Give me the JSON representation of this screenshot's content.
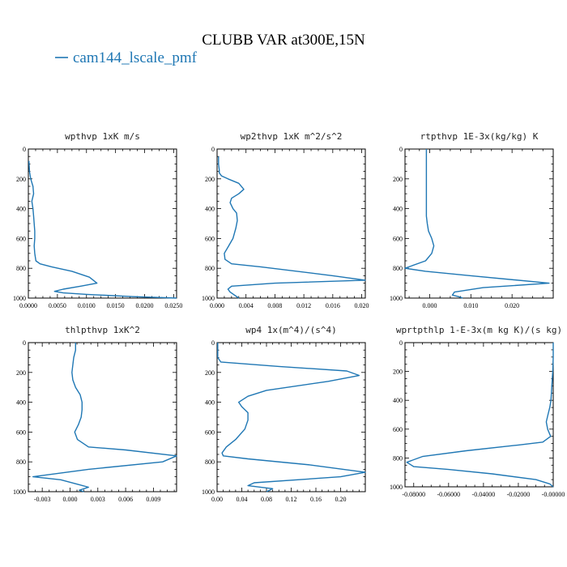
{
  "figure": {
    "title": "CLUBB VAR at300E,15N",
    "legend_label": "cam144_lscale_pmf",
    "series_color": "#1f77b4"
  },
  "chart_data": [
    {
      "type": "line",
      "title": "wpthvp  1xK m/s",
      "xlim": [
        0,
        0.0255
      ],
      "ylim": [
        1000,
        0
      ],
      "xticks": [
        0.0,
        0.005,
        0.01,
        0.015,
        0.02,
        0.025
      ],
      "xtick_labels": [
        "0.0000",
        "0.0050",
        "0.0100",
        "0.0150",
        "0.0200",
        "0.0250"
      ],
      "yticks": [
        0,
        200,
        400,
        600,
        800,
        1000
      ],
      "ytick_labels": [
        "0",
        "200",
        "400",
        "600",
        "800",
        "1000"
      ],
      "series": [
        {
          "x": [
            0.0001,
            0.0002,
            0.0004,
            0.0008,
            0.0009,
            0.0006,
            0.0008,
            0.0009,
            0.001,
            0.0011,
            0.0011,
            0.001,
            0.0011,
            0.0013,
            0.002,
            0.004,
            0.0075,
            0.0105,
            0.0118,
            0.009,
            0.006,
            0.0045,
            0.006,
            0.01,
            0.018,
            0.0255
          ],
          "y": [
            80,
            150,
            200,
            250,
            300,
            350,
            400,
            450,
            500,
            550,
            600,
            650,
            700,
            750,
            770,
            790,
            820,
            860,
            900,
            920,
            940,
            955,
            965,
            975,
            990,
            1000
          ]
        }
      ]
    },
    {
      "type": "line",
      "title": "wp2thvp  1xK m^2/s^2",
      "xlim": [
        0,
        0.0205
      ],
      "ylim": [
        1000,
        0
      ],
      "xticks": [
        0.0,
        0.004,
        0.008,
        0.012,
        0.016,
        0.02
      ],
      "xtick_labels": [
        "0.000",
        "0.004",
        "0.008",
        "0.012",
        "0.016",
        "0.020"
      ],
      "yticks": [
        0,
        200,
        400,
        600,
        800,
        1000
      ],
      "ytick_labels": [
        "0",
        "200",
        "400",
        "600",
        "800",
        "1000"
      ],
      "series": [
        {
          "x": [
            0.0002,
            0.0002,
            0.0003,
            0.0003,
            0.0006,
            0.0015,
            0.003,
            0.0037,
            0.003,
            0.002,
            0.0018,
            0.0022,
            0.0027,
            0.0028,
            0.0026,
            0.0022,
            0.0016,
            0.001,
            0.0011,
            0.002,
            0.006,
            0.016,
            0.0205,
            0.008,
            0.002,
            0.0015,
            0.0018,
            0.003
          ],
          "y": [
            50,
            100,
            140,
            160,
            180,
            200,
            230,
            270,
            300,
            330,
            360,
            400,
            430,
            480,
            530,
            600,
            650,
            700,
            740,
            770,
            790,
            850,
            880,
            900,
            920,
            940,
            960,
            1000
          ]
        }
      ]
    },
    {
      "type": "line",
      "title": "rtpthvp  1E-3x(kg/kg) K",
      "xlim": [
        -0.006,
        0.03
      ],
      "ylim": [
        1000,
        0
      ],
      "xticks": [
        0.0,
        0.01,
        0.02
      ],
      "xtick_labels": [
        "0.000",
        "0.010",
        "0.020"
      ],
      "yticks": [
        0,
        200,
        400,
        600,
        800,
        1000
      ],
      "ytick_labels": [
        "0",
        "200",
        "400",
        "600",
        "800",
        "1000"
      ],
      "series": [
        {
          "x": [
            -0.0008,
            -0.0008,
            -0.0008,
            -0.0008,
            -0.0008,
            -0.0008,
            -0.0006,
            -0.0003,
            0.0005,
            0.001,
            0.0005,
            -0.001,
            -0.006,
            -0.001,
            0.01,
            0.029,
            0.013,
            0.006,
            0.0055,
            0.007,
            0.008
          ],
          "y": [
            0,
            100,
            200,
            300,
            400,
            450,
            500,
            550,
            600,
            650,
            700,
            750,
            800,
            820,
            850,
            900,
            930,
            960,
            980,
            990,
            1000
          ]
        }
      ]
    },
    {
      "type": "line",
      "title": "thlpthvp  1xK^2",
      "xlim": [
        -0.0045,
        0.0115
      ],
      "ylim": [
        1000,
        0
      ],
      "xticks": [
        -0.003,
        0.0,
        0.003,
        0.006,
        0.009
      ],
      "xtick_labels": [
        "-0.003",
        "0.000",
        "0.003",
        "0.006",
        "0.009"
      ],
      "yticks": [
        0,
        200,
        400,
        600,
        800,
        1000
      ],
      "ytick_labels": [
        "0",
        "200",
        "400",
        "600",
        "800",
        "1000"
      ],
      "series": [
        {
          "x": [
            0.0006,
            0.0006,
            0.0004,
            0.0003,
            0.0002,
            0.0003,
            0.0006,
            0.0011,
            0.0013,
            0.0013,
            0.0012,
            0.0009,
            0.0005,
            0.0008,
            0.002,
            0.006,
            0.0115,
            0.01,
            0.002,
            -0.004,
            -0.001,
            0.0008,
            0.002,
            0.001,
            0.0015
          ],
          "y": [
            0,
            50,
            100,
            150,
            200,
            250,
            300,
            350,
            400,
            450,
            500,
            550,
            600,
            650,
            700,
            720,
            760,
            800,
            850,
            900,
            920,
            950,
            970,
            990,
            1000
          ]
        }
      ]
    },
    {
      "type": "line",
      "title": "wp4  1x(m^4)/(s^4)",
      "xlim": [
        0,
        0.24
      ],
      "ylim": [
        1000,
        0
      ],
      "xticks": [
        0.0,
        0.04,
        0.08,
        0.12,
        0.16,
        0.2
      ],
      "xtick_labels": [
        "0.00",
        "0.04",
        "0.08",
        "0.12",
        "0.16",
        "0.20"
      ],
      "yticks": [
        0,
        200,
        400,
        600,
        800,
        1000
      ],
      "ytick_labels": [
        "0",
        "200",
        "400",
        "600",
        "800",
        "1000"
      ],
      "series": [
        {
          "x": [
            0.001,
            0.001,
            0.006,
            0.1,
            0.21,
            0.23,
            0.18,
            0.08,
            0.05,
            0.035,
            0.04,
            0.05,
            0.05,
            0.045,
            0.03,
            0.015,
            0.008,
            0.01,
            0.05,
            0.15,
            0.24,
            0.2,
            0.06,
            0.05,
            0.09,
            0.085,
            0.08
          ],
          "y": [
            0,
            100,
            130,
            160,
            190,
            220,
            260,
            320,
            360,
            400,
            430,
            470,
            520,
            580,
            650,
            700,
            740,
            760,
            780,
            820,
            870,
            900,
            940,
            960,
            980,
            990,
            1000
          ]
        }
      ]
    },
    {
      "type": "line",
      "title": "wprtpthlp  1-E-3x(m kg K)/(s kg)",
      "xlim": [
        -0.085,
        0.0
      ],
      "ylim": [
        1000,
        0
      ],
      "xticks": [
        -0.08,
        -0.06,
        -0.04,
        -0.02,
        0.0
      ],
      "xtick_labels": [
        "-0.08000",
        "-0.06000",
        "-0.04000",
        "-0.02000",
        "-0.00000"
      ],
      "yticks": [
        0,
        200,
        400,
        600,
        800,
        1000
      ],
      "ytick_labels": [
        "0",
        "200",
        "400",
        "600",
        "800",
        "1000"
      ],
      "series": [
        {
          "x": [
            0.0,
            0.0,
            -0.0003,
            -0.0008,
            -0.0013,
            -0.002,
            -0.003,
            -0.004,
            -0.0032,
            -0.0015,
            -0.006,
            -0.02,
            -0.05,
            -0.075,
            -0.084,
            -0.08,
            -0.06,
            -0.035,
            -0.01,
            -0.002,
            0.0
          ],
          "y": [
            0,
            100,
            200,
            300,
            400,
            450,
            500,
            550,
            600,
            650,
            690,
            710,
            750,
            790,
            830,
            860,
            880,
            910,
            950,
            980,
            1000
          ]
        }
      ]
    }
  ]
}
